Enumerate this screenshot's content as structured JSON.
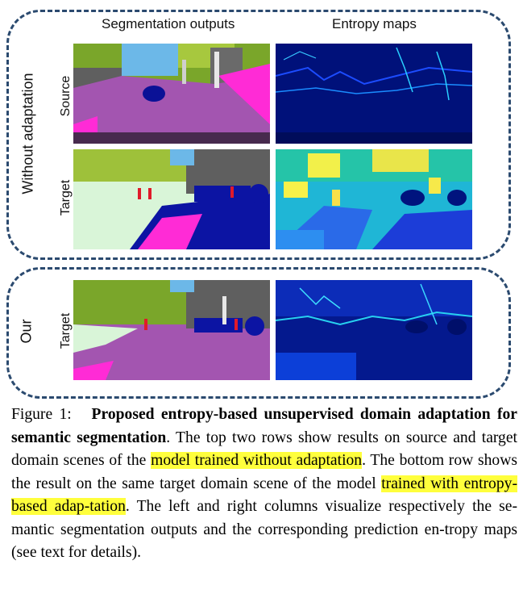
{
  "figure": {
    "col_headers": {
      "seg": "Segmentation outputs",
      "entropy": "Entropy maps"
    },
    "group_labels": {
      "without": "Without adaptation",
      "our": "Our"
    },
    "row_labels": {
      "source": "Source",
      "target1": "Target",
      "target2": "Target"
    }
  },
  "caption": {
    "label": "Figure 1:",
    "title": "Proposed entropy-based unsupervised domain adaptation for semantic segmentation",
    "t1": ". The top two rows show results on source and target domain scenes of the ",
    "h1": "model trained without adaptation",
    "t2": ". The bottom row shows the result on the same target domain scene of the model ",
    "h2": "trained with entropy-based adap-tation",
    "t3": ". The left and right columns visualize respectively the se-mantic segmentation outputs and the corresponding prediction en-tropy maps (see text for details)."
  },
  "colors": {
    "box_dash": "#2b4a6f",
    "highlight": "#ffff3c"
  }
}
